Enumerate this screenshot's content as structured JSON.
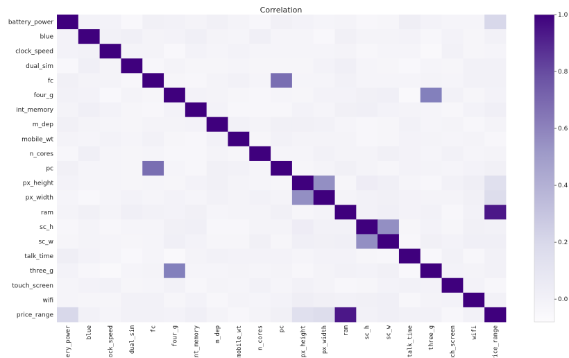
{
  "chart_data": {
    "type": "heatmap",
    "title": "Correlation",
    "colormap": "Purples",
    "colors": {
      "low": "#fcfbfd",
      "mid": "#9e9ac8",
      "high": "#3f007d"
    },
    "variables": [
      "battery_power",
      "blue",
      "clock_speed",
      "dual_sim",
      "fc",
      "four_g",
      "int_memory",
      "m_dep",
      "mobile_wt",
      "n_cores",
      "pc",
      "px_height",
      "px_width",
      "ram",
      "sc_h",
      "sc_w",
      "talk_time",
      "three_g",
      "touch_screen",
      "wifi",
      "price_range"
    ],
    "xtick_labels": [
      "attery_power",
      "blue",
      "clock_speed",
      "dual_sim",
      "fc",
      "four_g",
      "int_memory",
      "m_dep",
      "mobile_wt",
      "n_cores",
      "pc",
      "px_height",
      "px_width",
      "ram",
      "sc_h",
      "sc_w",
      "talk_time",
      "three_g",
      "touch_screen",
      "wifi",
      "price_range"
    ],
    "matrix": [
      [
        1.0,
        0.01,
        0.01,
        -0.04,
        0.03,
        0.02,
        -0.0,
        0.03,
        0.0,
        -0.03,
        0.03,
        0.01,
        -0.01,
        -0.0,
        -0.03,
        -0.02,
        0.05,
        0.01,
        -0.01,
        -0.01,
        0.2
      ],
      [
        0.01,
        1.0,
        0.02,
        0.04,
        0.0,
        0.01,
        0.04,
        0.0,
        -0.01,
        0.04,
        -0.01,
        -0.01,
        -0.04,
        0.03,
        -0.0,
        0.0,
        0.01,
        -0.03,
        0.01,
        -0.02,
        0.02
      ],
      [
        0.01,
        0.02,
        1.0,
        -0.0,
        -0.0,
        -0.04,
        0.01,
        -0.01,
        0.01,
        -0.01,
        -0.01,
        -0.01,
        -0.01,
        0.0,
        -0.03,
        -0.01,
        -0.01,
        -0.05,
        0.02,
        -0.02,
        -0.01
      ],
      [
        -0.04,
        0.04,
        -0.0,
        1.0,
        -0.03,
        0.0,
        -0.02,
        -0.02,
        -0.01,
        -0.02,
        -0.02,
        -0.02,
        0.01,
        0.04,
        -0.01,
        -0.02,
        -0.04,
        -0.01,
        -0.02,
        0.02,
        0.02
      ],
      [
        0.03,
        0.0,
        -0.0,
        -0.03,
        1.0,
        -0.02,
        -0.03,
        -0.0,
        0.02,
        -0.01,
        0.64,
        -0.01,
        -0.01,
        0.02,
        -0.01,
        -0.01,
        -0.01,
        0.0,
        -0.01,
        0.02,
        0.02
      ],
      [
        0.02,
        0.01,
        -0.04,
        0.0,
        -0.02,
        1.0,
        0.01,
        -0.0,
        -0.02,
        -0.03,
        -0.01,
        -0.02,
        0.01,
        0.01,
        0.03,
        0.04,
        -0.05,
        0.58,
        0.02,
        -0.02,
        0.01
      ],
      [
        -0.0,
        0.04,
        0.01,
        -0.02,
        -0.03,
        0.01,
        1.0,
        0.01,
        -0.03,
        -0.03,
        -0.03,
        0.01,
        -0.01,
        0.03,
        0.04,
        0.01,
        -0.0,
        -0.01,
        -0.03,
        0.01,
        0.04
      ],
      [
        0.03,
        0.0,
        -0.01,
        -0.02,
        -0.0,
        -0.0,
        0.01,
        1.0,
        0.02,
        -0.0,
        0.03,
        0.03,
        0.02,
        -0.01,
        -0.03,
        -0.02,
        0.02,
        -0.01,
        -0.0,
        -0.03,
        0.0
      ],
      [
        0.0,
        -0.01,
        0.01,
        -0.01,
        0.02,
        -0.02,
        -0.03,
        0.02,
        1.0,
        -0.02,
        0.02,
        0.0,
        0.0,
        -0.0,
        -0.03,
        -0.02,
        0.01,
        0.0,
        -0.01,
        -0.0,
        -0.03
      ],
      [
        -0.03,
        0.04,
        -0.01,
        -0.02,
        -0.01,
        -0.03,
        -0.03,
        -0.0,
        -0.02,
        1.0,
        -0.01,
        -0.01,
        0.02,
        0.0,
        -0.0,
        0.03,
        0.01,
        -0.01,
        0.02,
        -0.01,
        0.0
      ],
      [
        0.03,
        -0.01,
        -0.01,
        -0.02,
        0.64,
        -0.01,
        -0.03,
        0.03,
        0.02,
        -0.01,
        1.0,
        -0.02,
        0.0,
        0.03,
        0.0,
        -0.02,
        0.01,
        -0.0,
        -0.01,
        0.01,
        0.03
      ],
      [
        0.01,
        -0.01,
        -0.01,
        -0.02,
        -0.01,
        -0.02,
        0.01,
        0.03,
        0.0,
        -0.01,
        -0.02,
        1.0,
        0.51,
        -0.02,
        0.06,
        0.04,
        -0.01,
        -0.03,
        0.02,
        0.05,
        0.15
      ],
      [
        -0.01,
        -0.04,
        -0.01,
        0.01,
        -0.01,
        0.01,
        -0.01,
        0.02,
        0.0,
        0.02,
        0.0,
        0.51,
        1.0,
        0.0,
        0.02,
        0.03,
        0.01,
        0.0,
        -0.0,
        0.03,
        0.17
      ],
      [
        -0.0,
        0.03,
        0.0,
        0.04,
        0.02,
        0.01,
        0.03,
        -0.01,
        -0.0,
        0.0,
        0.03,
        -0.02,
        0.0,
        1.0,
        0.02,
        0.04,
        0.01,
        0.02,
        -0.03,
        0.02,
        0.92
      ],
      [
        -0.03,
        -0.0,
        -0.03,
        -0.01,
        -0.01,
        0.03,
        0.04,
        -0.03,
        -0.03,
        -0.0,
        0.0,
        0.06,
        0.02,
        0.02,
        1.0,
        0.51,
        -0.02,
        0.01,
        -0.02,
        0.03,
        0.02
      ],
      [
        -0.02,
        0.0,
        -0.01,
        -0.02,
        -0.01,
        0.04,
        0.01,
        -0.02,
        -0.02,
        0.03,
        -0.02,
        0.04,
        0.03,
        0.04,
        0.51,
        1.0,
        -0.03,
        0.03,
        0.01,
        0.04,
        0.04
      ],
      [
        0.05,
        0.01,
        -0.01,
        -0.04,
        -0.01,
        -0.05,
        -0.0,
        0.02,
        0.01,
        0.01,
        0.01,
        -0.01,
        0.01,
        0.01,
        -0.02,
        -0.03,
        1.0,
        -0.04,
        0.02,
        -0.03,
        0.02
      ],
      [
        0.01,
        -0.03,
        -0.05,
        -0.01,
        0.0,
        0.58,
        -0.01,
        -0.01,
        0.0,
        -0.01,
        -0.0,
        -0.03,
        0.0,
        0.02,
        0.01,
        0.03,
        -0.04,
        1.0,
        0.01,
        0.0,
        0.02
      ],
      [
        -0.01,
        0.01,
        0.02,
        -0.02,
        -0.01,
        0.02,
        -0.03,
        -0.0,
        -0.01,
        0.02,
        -0.01,
        0.02,
        -0.0,
        -0.03,
        -0.02,
        0.01,
        0.02,
        0.01,
        1.0,
        0.01,
        -0.03
      ],
      [
        -0.01,
        -0.02,
        -0.02,
        0.02,
        0.02,
        -0.02,
        0.01,
        -0.03,
        -0.0,
        -0.01,
        0.01,
        0.05,
        0.03,
        0.02,
        0.03,
        0.04,
        -0.03,
        0.0,
        0.01,
        1.0,
        0.02
      ],
      [
        0.2,
        0.02,
        -0.01,
        0.02,
        0.02,
        0.01,
        0.04,
        0.0,
        -0.03,
        0.0,
        0.03,
        0.15,
        0.17,
        0.92,
        0.02,
        0.04,
        0.02,
        0.02,
        -0.03,
        0.02,
        1.0
      ]
    ],
    "vmin": -0.08,
    "vmax": 1.0,
    "colorbar": {
      "ticks": [
        1.0,
        0.8,
        0.6,
        0.4,
        0.2,
        0.0
      ],
      "tick_labels": [
        "1.0",
        "0.8",
        "0.6",
        "0.4",
        "0.2",
        "0.0"
      ]
    }
  }
}
